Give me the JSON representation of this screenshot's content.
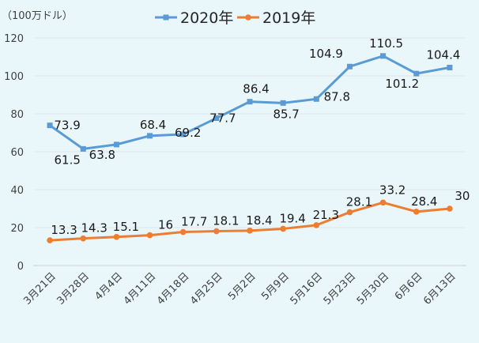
{
  "chart_data": {
    "type": "line",
    "unit_label": "（100万ドル）",
    "categories": [
      "3月21日",
      "3月28日",
      "4月4日",
      "4月11日",
      "4月18日",
      "4月25日",
      "5月2日",
      "5月9日",
      "5月16日",
      "5月23日",
      "5月30日",
      "6月6日",
      "6月13日"
    ],
    "ylim": [
      0,
      120
    ],
    "yticks": [
      0,
      20,
      40,
      60,
      80,
      100,
      120
    ],
    "grid": true,
    "legend_position": "top-center",
    "series": [
      {
        "name": "2020年",
        "color": "#5b9bd5",
        "marker": "square",
        "values": [
          73.9,
          61.5,
          63.8,
          68.4,
          69.2,
          77.7,
          86.4,
          85.7,
          87.8,
          104.9,
          110.5,
          101.2,
          104.4
        ],
        "labels": [
          "73.9",
          "61.5",
          "63.8",
          "68.4",
          "69.2",
          "77.7",
          "86.4",
          "85.7",
          "87.8",
          "104.9",
          "110.5",
          "101.2",
          "104.4"
        ]
      },
      {
        "name": "2019年",
        "color": "#ed7d31",
        "marker": "circle",
        "values": [
          13.3,
          14.3,
          15.1,
          16,
          17.7,
          18.1,
          18.4,
          19.4,
          21.3,
          28.1,
          33.2,
          28.4,
          30
        ],
        "labels": [
          "13.3",
          "14.3",
          "15.1",
          "16",
          "17.7",
          "18.1",
          "18.4",
          "19.4",
          "21.3",
          "28.1",
          "33.2",
          "28.4",
          "30"
        ]
      }
    ]
  }
}
